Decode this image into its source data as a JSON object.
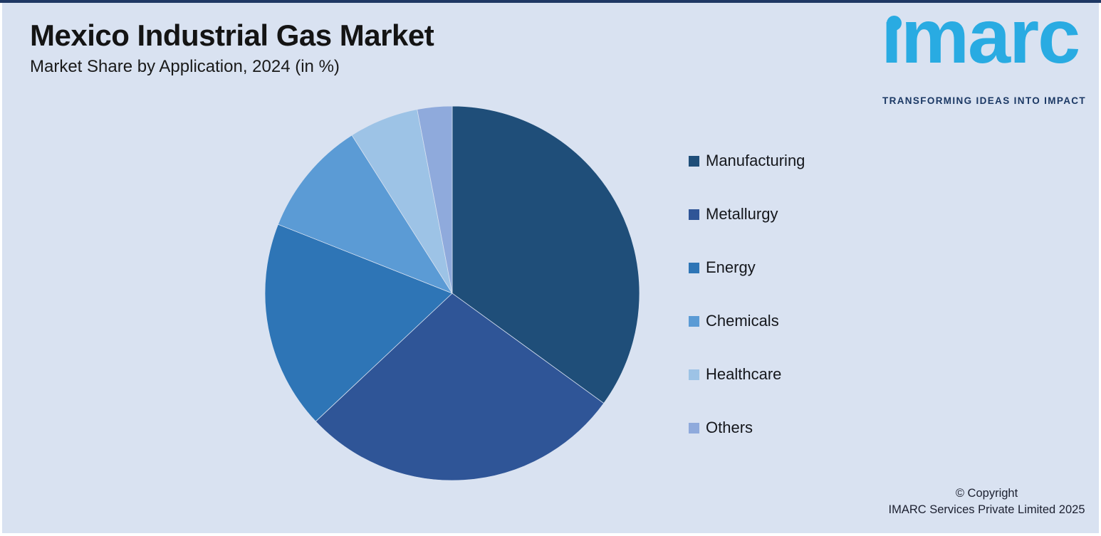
{
  "page": {
    "canvas_background": "#D9E2F1",
    "top_bar_color": "#1F3864",
    "border_color": "#FFFFFF"
  },
  "header": {
    "title": "Mexico Industrial Gas Market",
    "subtitle": "Market Share by Application, 2024 (in %)"
  },
  "logo": {
    "wordmark": "imarc",
    "tagline": "TRANSFORMING IDEAS INTO IMPACT",
    "brand_color": "#29ABE2",
    "tagline_color": "#1B3864"
  },
  "chart_data": {
    "type": "pie",
    "title": "Mexico Industrial Gas Market",
    "subtitle": "Market Share by Application, 2024 (in %)",
    "unit": "%",
    "start_angle_deg": 0,
    "direction": "clockwise",
    "legend_position": "right",
    "categories": [
      "Manufacturing",
      "Metallurgy",
      "Energy",
      "Chemicals",
      "Healthcare",
      "Others"
    ],
    "values": [
      35,
      28,
      18,
      10,
      6,
      3
    ],
    "colors": [
      "#1F4E79",
      "#2F5597",
      "#2E75B6",
      "#5B9BD5",
      "#9DC3E6",
      "#8FAADC"
    ]
  },
  "footer": {
    "copyright_line1": "© Copyright",
    "copyright_line2": "IMARC Services Private Limited 2025"
  }
}
